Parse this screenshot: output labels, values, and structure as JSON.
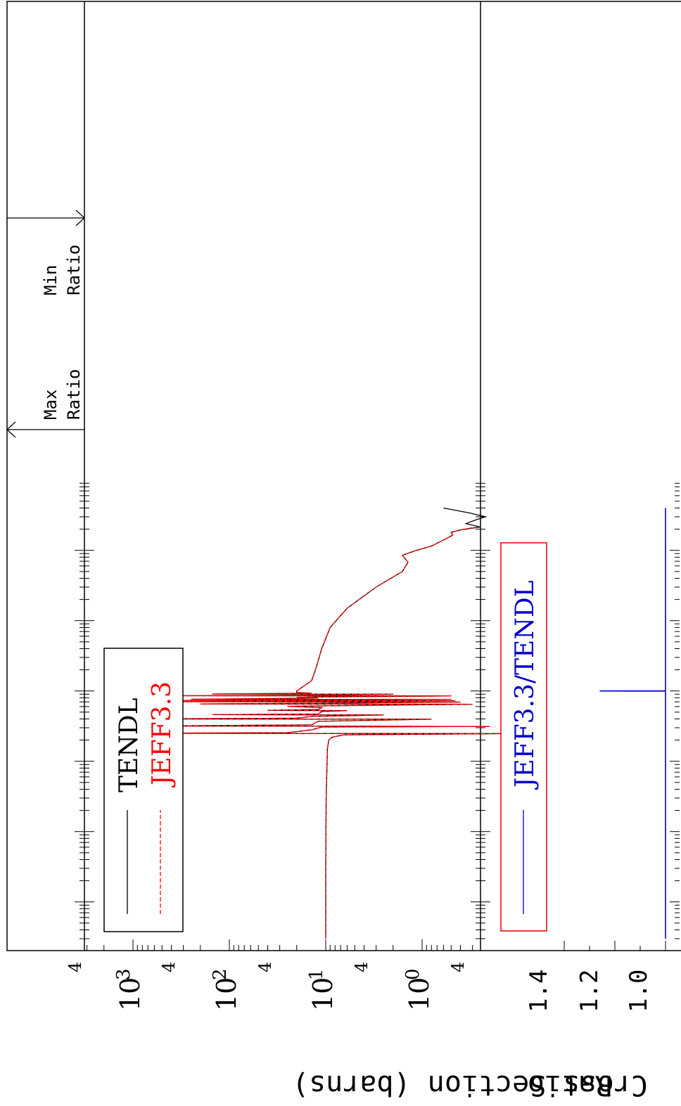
{
  "chart_data": [
    {
      "type": "line",
      "ylabel": "Cross Section (barns)",
      "yscale": "log",
      "ylim": [
        0.1,
        2000
      ],
      "yticks": [
        {
          "label": "10",
          "exp": "3",
          "value": 1000
        },
        {
          "label": "10",
          "exp": "2",
          "value": 100
        },
        {
          "label": "10",
          "exp": "1",
          "value": 10
        },
        {
          "label": "10",
          "exp": "0",
          "value": 1
        }
      ],
      "minor_labels": [
        "4",
        "4",
        "4",
        "4",
        "4"
      ],
      "legend": {
        "placement": "bottom-left",
        "entries": [
          "TENDL",
          "JEFF3.3"
        ]
      },
      "series": [
        {
          "name": "TENDL",
          "color": "#000000",
          "style": "solid",
          "values": [
            [
              0.03,
              10.0
            ],
            [
              0.3,
              10.0
            ],
            [
              3.0,
              9.9
            ],
            [
              15,
              9.6
            ],
            [
              20,
              9.3
            ],
            [
              22,
              8.6
            ],
            [
              23.8,
              6.5
            ],
            [
              24.7,
              0.13
            ],
            [
              25.0,
              1500
            ],
            [
              25.5,
              25
            ],
            [
              28,
              14
            ],
            [
              30.7,
              11
            ],
            [
              31.3,
              0.2
            ],
            [
              31.8,
              600
            ],
            [
              33,
              14
            ],
            [
              37,
              12
            ],
            [
              39.6,
              0.8
            ],
            [
              40,
              1000
            ],
            [
              41,
              20
            ],
            [
              43.5,
              14
            ],
            [
              45.5,
              2.5
            ],
            [
              46,
              150
            ],
            [
              47,
              12
            ],
            [
              51,
              11
            ],
            [
              52.5,
              6
            ],
            [
              53,
              40
            ],
            [
              54.5,
              12
            ],
            [
              58,
              11
            ],
            [
              60.5,
              25
            ],
            [
              61.5,
              9
            ],
            [
              64.8,
              0.3
            ],
            [
              65.4,
              200
            ],
            [
              67,
              12
            ],
            [
              69.5,
              0.4
            ],
            [
              70.3,
              350
            ],
            [
              72.6,
              0.45
            ],
            [
              73.2,
              300
            ],
            [
              75.8,
              0.5
            ],
            [
              76.3,
              250
            ],
            [
              79,
              12
            ],
            [
              81,
              20
            ],
            [
              82,
              13
            ],
            [
              85,
              0.5
            ],
            [
              85.5,
              350
            ],
            [
              87,
              14
            ],
            [
              90,
              2
            ],
            [
              90.5,
              150
            ],
            [
              93,
              14
            ],
            [
              95,
              20
            ],
            [
              100,
              20
            ],
            [
              140,
              14
            ],
            [
              220,
              12.5
            ],
            [
              400,
              11
            ],
            [
              800,
              9
            ],
            [
              1500,
              6
            ],
            [
              3000,
              3
            ],
            [
              5000,
              1.6
            ],
            [
              6800,
              1.4
            ],
            [
              8500,
              1.6
            ],
            [
              9800,
              1.2
            ],
            [
              11500,
              0.8
            ],
            [
              14000,
              0.6
            ],
            [
              16500,
              0.48
            ],
            [
              18000,
              0.5
            ],
            [
              19500,
              0.4
            ],
            [
              21500,
              0.25
            ],
            [
              24000,
              0.35
            ],
            [
              27000,
              0.28
            ],
            [
              30000,
              0.22
            ],
            [
              34000,
              0.32
            ],
            [
              40000,
              0.6
            ]
          ]
        },
        {
          "name": "JEFF3.3",
          "color": "#ff0000",
          "style": "dashed",
          "values": [
            [
              0.03,
              10.0
            ],
            [
              0.3,
              10.0
            ],
            [
              3.0,
              9.9
            ],
            [
              15,
              9.6
            ],
            [
              20,
              9.3
            ],
            [
              22,
              8.6
            ],
            [
              23.8,
              6.5
            ],
            [
              24.7,
              0.13
            ],
            [
              25.0,
              1500
            ],
            [
              25.5,
              25
            ],
            [
              28,
              14
            ],
            [
              30.7,
              11
            ],
            [
              31.3,
              0.2
            ],
            [
              31.8,
              600
            ],
            [
              33,
              14
            ],
            [
              37,
              12
            ],
            [
              39.6,
              0.8
            ],
            [
              40,
              1000
            ],
            [
              41,
              20
            ],
            [
              43.5,
              14
            ],
            [
              45.5,
              2.5
            ],
            [
              46,
              150
            ],
            [
              47,
              12
            ],
            [
              51,
              11
            ],
            [
              52.5,
              6
            ],
            [
              53,
              40
            ],
            [
              54.5,
              12
            ],
            [
              58,
              11
            ],
            [
              60.5,
              25
            ],
            [
              61.5,
              9
            ],
            [
              64.8,
              0.3
            ],
            [
              65.4,
              200
            ],
            [
              67,
              12
            ],
            [
              69.5,
              0.4
            ],
            [
              70.3,
              350
            ],
            [
              72.6,
              0.45
            ],
            [
              73.2,
              300
            ],
            [
              75.8,
              0.5
            ],
            [
              76.3,
              250
            ],
            [
              79,
              12
            ],
            [
              81,
              20
            ],
            [
              82,
              13
            ],
            [
              85,
              0.5
            ],
            [
              85.5,
              350
            ],
            [
              87,
              14
            ],
            [
              90,
              2
            ],
            [
              90.5,
              150
            ],
            [
              93,
              14
            ],
            [
              95,
              20
            ],
            [
              100,
              20
            ],
            [
              140,
              14
            ],
            [
              220,
              12.5
            ],
            [
              400,
              11
            ],
            [
              800,
              9
            ],
            [
              1500,
              6
            ],
            [
              3000,
              3
            ],
            [
              5000,
              1.6
            ],
            [
              6800,
              1.4
            ],
            [
              8500,
              1.6
            ],
            [
              9800,
              1.2
            ],
            [
              11500,
              0.8
            ],
            [
              14000,
              0.6
            ],
            [
              16500,
              0.48
            ],
            [
              18000,
              0.5
            ],
            [
              19500,
              0.4
            ],
            [
              21000,
              0.3
            ]
          ]
        }
      ]
    },
    {
      "type": "line",
      "ylabel": "Ratio",
      "ylim": [
        1.0,
        1.5
      ],
      "yticks": [
        "1.0",
        "1.2",
        "1.4"
      ],
      "legend": {
        "placement": "bottom-left",
        "entries": [
          "JEFF3.3/TENDL"
        ]
      },
      "series": [
        {
          "name": "JEFF3.3/TENDL",
          "color": "#0000cc",
          "values": [
            [
              0.03,
              1.0
            ],
            [
              99,
              1.0
            ],
            [
              99.6,
              1.0
            ],
            [
              100,
              1.26
            ],
            [
              100.4,
              1.0
            ],
            [
              101,
              1.0
            ],
            [
              40000,
              1.0
            ]
          ]
        }
      ]
    }
  ],
  "annotations": {
    "max_ratio": [
      "Max",
      "Ratio"
    ],
    "min_ratio": [
      "Min",
      "Ratio"
    ]
  }
}
